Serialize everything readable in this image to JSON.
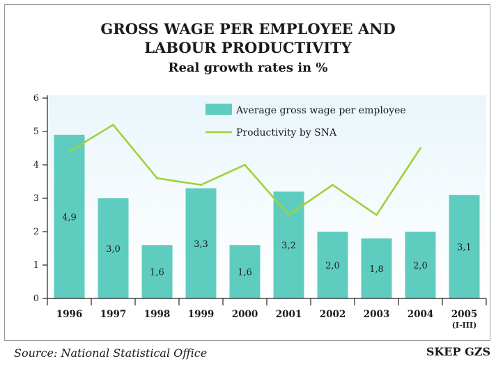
{
  "title_line1": "GROSS WAGE PER EMPLOYEE AND",
  "title_line2": "LABOUR PRODUCTIVITY",
  "subtitle": "Real growth rates in %",
  "source": "Source: National Statistical Office",
  "brand": "SKEP GZS",
  "colors": {
    "bar": "#5ecdc0",
    "line": "#9fd13a",
    "background_gradient_top": "#e9f6fb",
    "axis": "#222222"
  },
  "chart_data": {
    "type": "bar",
    "title": "GROSS WAGE PER EMPLOYEE AND LABOUR PRODUCTIVITY",
    "subtitle": "Real growth rates in %",
    "categories": [
      "1996",
      "1997",
      "1998",
      "1999",
      "2000",
      "2001",
      "2002",
      "2003",
      "2004",
      "2005"
    ],
    "category_sublabels": [
      "",
      "",
      "",
      "",
      "",
      "",
      "",
      "",
      "",
      "(I-III)"
    ],
    "series": [
      {
        "name": "Average gross wage per employee",
        "type": "bar",
        "values": [
          4.9,
          3.0,
          1.6,
          3.3,
          1.6,
          3.2,
          2.0,
          1.8,
          2.0,
          3.1
        ],
        "labels": [
          "4,9",
          "3,0",
          "1,6",
          "3,3",
          "1,6",
          "3,2",
          "2,0",
          "1,8",
          "2,0",
          "3,1"
        ]
      },
      {
        "name": "Productivity by SNA",
        "type": "line",
        "values": [
          4.4,
          5.2,
          3.6,
          3.4,
          4.0,
          2.5,
          3.4,
          2.5,
          4.5,
          null
        ]
      }
    ],
    "yticks": [
      "0",
      "1",
      "2",
      "3",
      "4",
      "5",
      "6"
    ],
    "ylim": [
      0,
      6
    ],
    "legend_position": "top-right",
    "grid": false
  }
}
